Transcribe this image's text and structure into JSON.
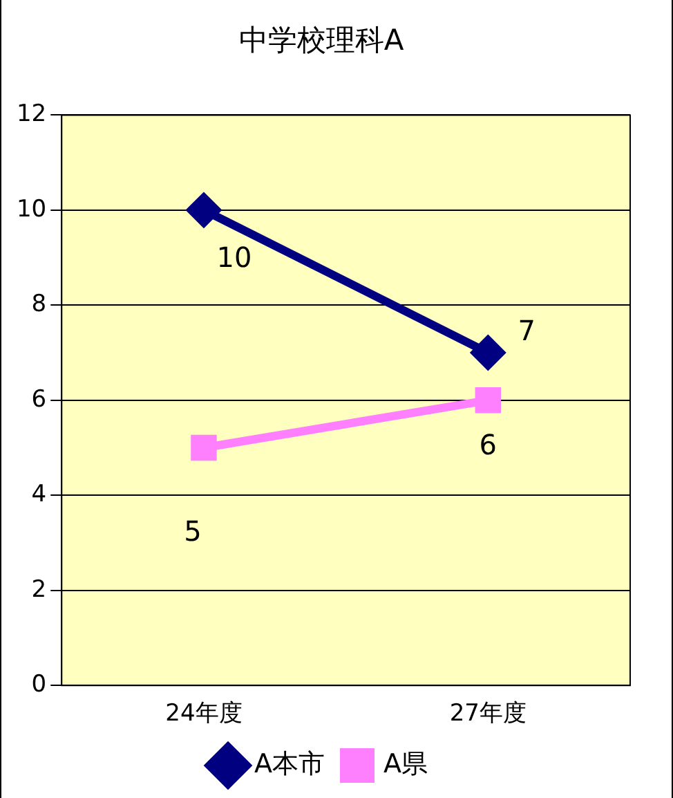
{
  "chart_data": {
    "type": "line",
    "title": "中学校理科A",
    "categories": [
      "24年度",
      "27年度"
    ],
    "series": [
      {
        "name": "A本市",
        "color": "#000080",
        "values": [
          10,
          7
        ],
        "marker": "diamond"
      },
      {
        "name": "A県",
        "color": "#ff80ff",
        "values": [
          5,
          6
        ],
        "marker": "square"
      }
    ],
    "ylim": [
      0,
      12
    ],
    "yticks": [
      0,
      2,
      4,
      6,
      8,
      10,
      12
    ],
    "grid": "y",
    "legend": "bottom",
    "data_labels": true
  }
}
